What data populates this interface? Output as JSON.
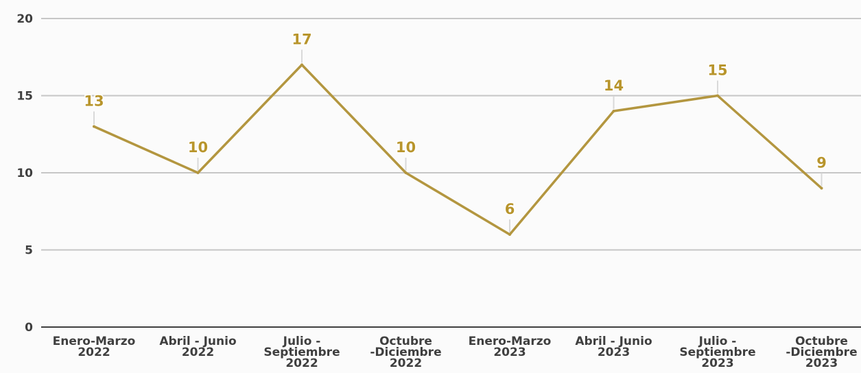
{
  "colors": {
    "line": "#b3963f",
    "label": "#b8952c",
    "grid": "#c6c6c6",
    "axis": "#3f3f3f",
    "leader": "#d9d9d9"
  },
  "chart_data": {
    "type": "line",
    "title": "",
    "xlabel": "",
    "ylabel": "",
    "ylim": [
      0,
      20
    ],
    "yticks": [
      "0",
      "5",
      "10",
      "15",
      "20"
    ],
    "grid": true,
    "legend": "none",
    "categories": [
      "Enero-Marzo\n2022",
      "Abril - Junio\n2022",
      "Julio -\nSeptiembre\n2022",
      "Octubre\n-Diciembre\n2022",
      "Enero-Marzo\n2023",
      "Abril - Junio\n2023",
      "Julio -\nSeptiembre\n2023",
      "Octubre\n-Diciembre\n2023"
    ],
    "series": [
      {
        "values": [
          13,
          10,
          17,
          10,
          6,
          14,
          15,
          9
        ]
      }
    ],
    "data_labels": [
      "13",
      "10",
      "17",
      "10",
      "6",
      "14",
      "15",
      "9"
    ]
  }
}
